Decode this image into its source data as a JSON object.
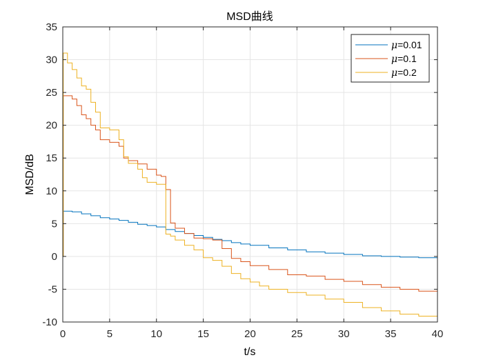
{
  "chart_data": {
    "type": "line",
    "title": "MSD曲线",
    "xlabel": "t/s",
    "ylabel": "MSD/dB",
    "xlim": [
      0,
      40
    ],
    "ylim": [
      -10,
      35
    ],
    "xticks": [
      0,
      5,
      10,
      15,
      20,
      25,
      30,
      35,
      40
    ],
    "yticks": [
      -10,
      -5,
      0,
      5,
      10,
      15,
      20,
      25,
      30,
      35
    ],
    "xtick_labels": [
      "0",
      "5",
      "10",
      "15",
      "20",
      "25",
      "30",
      "35",
      "40"
    ],
    "ytick_labels": [
      "-10",
      "-5",
      "0",
      "5",
      "10",
      "15",
      "20",
      "25",
      "30",
      "35"
    ],
    "grid": true,
    "legend_position": "top-right",
    "series": [
      {
        "name": "μ=0.01",
        "legend_symbol": "μ",
        "legend_value": "=0.01",
        "color": "#0072BD",
        "x": [
          0,
          0.05,
          1,
          2,
          3,
          4,
          5,
          6,
          7,
          8,
          9,
          10,
          11,
          12,
          13,
          14,
          15,
          16,
          17,
          18,
          19,
          20,
          22,
          24,
          26,
          28,
          30,
          32,
          34,
          36,
          38,
          40
        ],
        "y": [
          0,
          6.9,
          6.8,
          6.5,
          6.2,
          5.9,
          5.7,
          5.5,
          5.2,
          4.9,
          4.7,
          4.5,
          4.1,
          3.8,
          3.5,
          3.2,
          2.9,
          2.6,
          2.4,
          2.1,
          1.9,
          1.7,
          1.3,
          1.0,
          0.7,
          0.5,
          0.3,
          0.1,
          0.0,
          -0.1,
          -0.2,
          -0.4
        ]
      },
      {
        "name": "μ=0.1",
        "legend_symbol": "μ",
        "legend_value": "=0.1",
        "color": "#D95319",
        "x": [
          0,
          0.05,
          1,
          1.5,
          2,
          2.5,
          3,
          3.5,
          4,
          5,
          6,
          6.5,
          7,
          8,
          9,
          10,
          10.5,
          11,
          11.5,
          12,
          13,
          14,
          15,
          16,
          17,
          18,
          19,
          20,
          22,
          24,
          26,
          28,
          30,
          32,
          34,
          36,
          38,
          40
        ],
        "y": [
          0,
          24.5,
          24.0,
          23.0,
          21.6,
          21.0,
          20.0,
          19.3,
          17.8,
          17.4,
          16.8,
          15.0,
          14.6,
          14.1,
          13.3,
          12.4,
          12.2,
          10.2,
          5.1,
          4.3,
          3.5,
          2.8,
          2.7,
          2.5,
          1.2,
          -0.3,
          -0.8,
          -1.4,
          -2.0,
          -2.8,
          -3.0,
          -3.5,
          -3.8,
          -4.3,
          -4.7,
          -5.0,
          -5.3,
          -5.8
        ]
      },
      {
        "name": "μ=0.2",
        "legend_symbol": "μ",
        "legend_value": "=0.2",
        "color": "#EDB120",
        "x": [
          0,
          0.05,
          0.5,
          1,
          1.5,
          2,
          2.5,
          3,
          3.5,
          4,
          5,
          6,
          6.5,
          7,
          8,
          8.5,
          9,
          10,
          11,
          11.5,
          12,
          13,
          14,
          15,
          16,
          17,
          18,
          19,
          20,
          21,
          22,
          24,
          26,
          28,
          30,
          32,
          34,
          36,
          38,
          40
        ],
        "y": [
          0,
          31.0,
          29.5,
          28.5,
          27.2,
          26.0,
          25.5,
          23.5,
          22.0,
          19.6,
          19.3,
          17.8,
          15.2,
          14.2,
          13.3,
          12.0,
          11.3,
          11.0,
          3.4,
          3.1,
          2.5,
          1.7,
          1.0,
          -0.2,
          -0.6,
          -1.5,
          -2.6,
          -3.4,
          -3.9,
          -4.5,
          -5.0,
          -5.5,
          -5.9,
          -6.5,
          -7.0,
          -7.8,
          -8.3,
          -8.8,
          -9.1,
          -9.6
        ]
      }
    ]
  }
}
